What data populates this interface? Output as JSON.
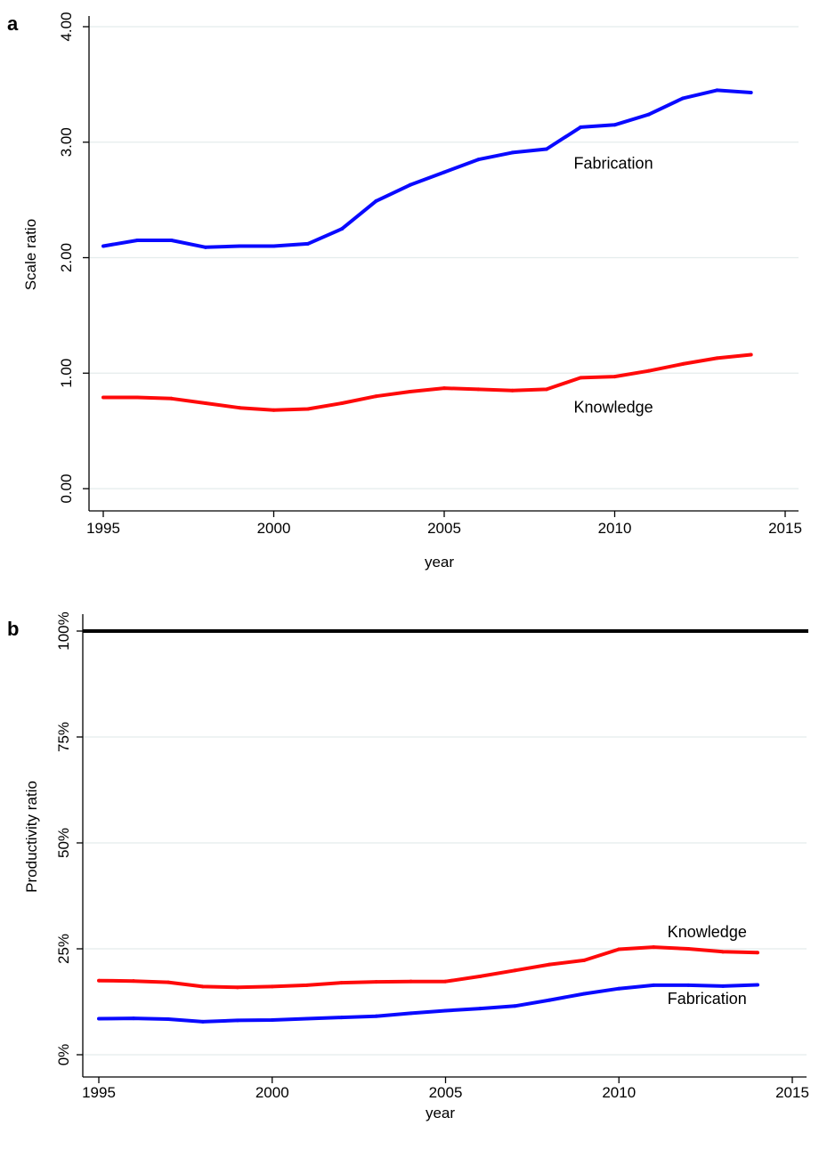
{
  "chart_data": [
    {
      "panel": "a",
      "type": "line",
      "xlabel": "year",
      "ylabel": "Scale ratio",
      "xlim": [
        1995,
        2015
      ],
      "ylim": [
        0,
        4
      ],
      "xticks": [
        1995,
        2000,
        2005,
        2010,
        2015
      ],
      "xtick_labels": [
        "1995",
        "2000",
        "2005",
        "2010",
        "2015"
      ],
      "yticks": [
        0,
        1,
        2,
        3,
        4
      ],
      "ytick_labels": [
        "0.00",
        "1.00",
        "2.00",
        "3.00",
        "4.00"
      ],
      "grid": true,
      "x": [
        1995,
        1996,
        1997,
        1998,
        1999,
        2000,
        2001,
        2002,
        2003,
        2004,
        2005,
        2006,
        2007,
        2008,
        2009,
        2010,
        2011,
        2012,
        2013,
        2014
      ],
      "series": [
        {
          "name": "Fabrication",
          "color": "#0a0aff",
          "values": [
            2.1,
            2.15,
            2.15,
            2.09,
            2.1,
            2.1,
            2.12,
            2.25,
            2.49,
            2.63,
            2.74,
            2.85,
            2.91,
            2.94,
            3.13,
            3.15,
            3.24,
            3.38,
            3.45,
            3.43
          ]
        },
        {
          "name": "Knowledge",
          "color": "#ff0a0a",
          "values": [
            0.79,
            0.79,
            0.78,
            0.74,
            0.7,
            0.68,
            0.69,
            0.74,
            0.8,
            0.84,
            0.87,
            0.86,
            0.85,
            0.86,
            0.96,
            0.97,
            1.02,
            1.08,
            1.13,
            1.16
          ]
        }
      ],
      "annotations": [
        {
          "text": "Fabrication",
          "x": 2008.8,
          "y": 2.77
        },
        {
          "text": "Knowledge",
          "x": 2008.8,
          "y": 0.66
        }
      ]
    },
    {
      "panel": "b",
      "type": "line",
      "xlabel": "year",
      "ylabel": "Productivity ratio",
      "xlim": [
        1995,
        2015
      ],
      "ylim": [
        0,
        100
      ],
      "xticks": [
        1995,
        2000,
        2005,
        2010,
        2015
      ],
      "xtick_labels": [
        "1995",
        "2000",
        "2005",
        "2010",
        "2015"
      ],
      "yticks": [
        0,
        25,
        50,
        75,
        100
      ],
      "ytick_labels": [
        "0%",
        "25%",
        "50%",
        "75%",
        "100%"
      ],
      "grid": true,
      "reference_line": {
        "y": 100,
        "color": "#000000"
      },
      "x": [
        1995,
        1996,
        1997,
        1998,
        1999,
        2000,
        2001,
        2002,
        2003,
        2004,
        2005,
        2006,
        2007,
        2008,
        2009,
        2010,
        2011,
        2012,
        2013,
        2014
      ],
      "series": [
        {
          "name": "Knowledge",
          "color": "#ff0a0a",
          "values": [
            17.5,
            17.4,
            17.1,
            16.1,
            15.9,
            16.1,
            16.4,
            17.0,
            17.2,
            17.3,
            17.3,
            18.5,
            19.9,
            21.3,
            22.3,
            24.9,
            25.4,
            25.0,
            24.3,
            24.1
          ]
        },
        {
          "name": "Fabrication",
          "color": "#0a0aff",
          "values": [
            8.5,
            8.6,
            8.4,
            7.8,
            8.1,
            8.2,
            8.5,
            8.8,
            9.1,
            9.8,
            10.4,
            10.9,
            11.5,
            12.9,
            14.4,
            15.6,
            16.4,
            16.4,
            16.2,
            16.5
          ]
        }
      ],
      "annotations": [
        {
          "text": "Knowledge",
          "x": 2011.4,
          "y": 27.7
        },
        {
          "text": "Fabrication",
          "x": 2011.4,
          "y": 12.0
        }
      ]
    }
  ]
}
